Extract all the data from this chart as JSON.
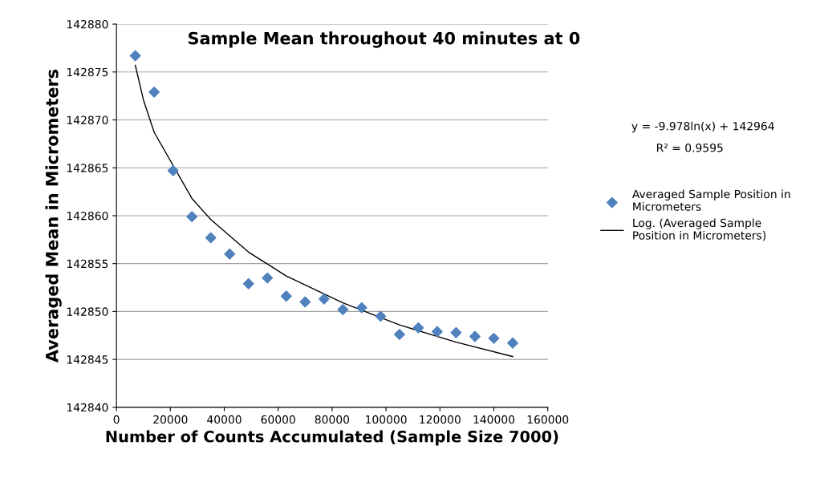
{
  "chart_data": {
    "type": "scatter",
    "title": "Sample Mean throughout 40 minutes at 0",
    "xlabel": "Number of Counts Accumulated (Sample Size 7000)",
    "ylabel": "Averaged Mean in Micrometers",
    "xlim": [
      0,
      160000
    ],
    "xticks": [
      0,
      20000,
      40000,
      60000,
      80000,
      100000,
      120000,
      140000,
      160000
    ],
    "ylim": [
      142840,
      142880
    ],
    "yticks": [
      142840,
      142845,
      142850,
      142855,
      142860,
      142865,
      142870,
      142875,
      142880
    ],
    "grid": "y",
    "legend": "right",
    "marker": "diamond",
    "annotations": [
      "y = -9.978ln(x) + 142964",
      "R² = 0.9595"
    ],
    "series": [
      {
        "name": "Averaged Sample Position in Micrometers",
        "color": "#4f81bd",
        "x": [
          7000,
          14000,
          21000,
          28000,
          35000,
          42000,
          49000,
          56000,
          63000,
          70000,
          77000,
          84000,
          91000,
          98000,
          105000,
          112000,
          119000,
          126000,
          133000,
          140000,
          147000
        ],
        "values": [
          142876.7,
          142872.9,
          142864.7,
          142859.9,
          142857.7,
          142856.0,
          142852.9,
          142853.5,
          142851.6,
          142851.0,
          142851.3,
          142850.2,
          142850.4,
          142849.5,
          142847.6,
          142848.3,
          142847.9,
          142847.8,
          142847.4,
          142847.2,
          142846.7
        ]
      },
      {
        "name": "Log. (Averaged Sample Position in Micrometers)",
        "type": "line",
        "color": "#000000",
        "marker": "none",
        "x": [
          7000,
          10000,
          14000,
          28000,
          35000,
          49000,
          63000,
          84000,
          105000,
          126000,
          147000
        ],
        "values": [
          142875.7,
          142872.1,
          142868.7,
          142861.8,
          142859.6,
          142856.2,
          142853.7,
          142850.9,
          142848.6,
          142846.8,
          142845.3
        ]
      }
    ]
  }
}
